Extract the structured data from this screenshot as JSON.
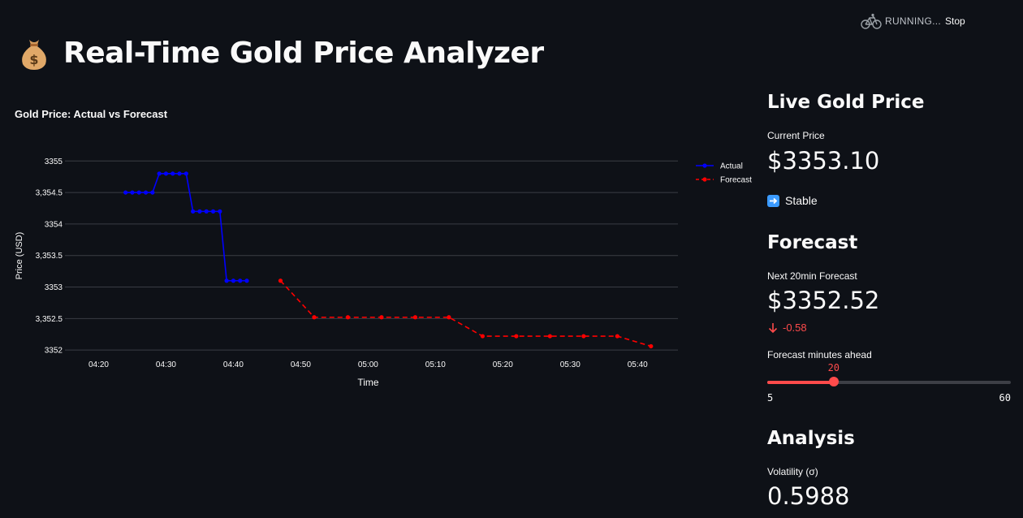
{
  "status_bar": {
    "running_label": "RUNNING...",
    "stop_label": "Stop",
    "icon": "bicycle-icon"
  },
  "page": {
    "title": "Real-Time Gold Price Analyzer",
    "title_icon": "moneybag-icon"
  },
  "chart_data": {
    "type": "line",
    "title": "Gold Price: Actual vs Forecast",
    "xlabel": "Time",
    "ylabel": "Price (USD)",
    "x_ticks": [
      "04:20",
      "04:30",
      "04:40",
      "04:50",
      "05:00",
      "05:10",
      "05:20",
      "05:30",
      "05:40"
    ],
    "y_ticks": [
      "3355",
      "3,354.5",
      "3354",
      "3,353.5",
      "3353",
      "3,352.5",
      "3352"
    ],
    "ylim": [
      3351.95,
      3355.3
    ],
    "grid": "horizontal",
    "legend_position": "right",
    "series": [
      {
        "name": "Actual",
        "color": "#0000ff",
        "linestyle": "solid",
        "x": [
          "04:24",
          "04:25",
          "04:26",
          "04:27",
          "04:28",
          "04:29",
          "04:30",
          "04:31",
          "04:32",
          "04:33",
          "04:34",
          "04:35",
          "04:36",
          "04:37",
          "04:38",
          "04:39",
          "04:40",
          "04:41",
          "04:42"
        ],
        "y": [
          3354.5,
          3354.5,
          3354.5,
          3354.5,
          3354.5,
          3354.8,
          3354.8,
          3354.8,
          3354.8,
          3354.8,
          3354.2,
          3354.2,
          3354.2,
          3354.2,
          3354.2,
          3353.1,
          3353.1,
          3353.1,
          3353.1
        ]
      },
      {
        "name": "Forecast",
        "color": "#ff0000",
        "linestyle": "dashed",
        "x": [
          "04:47",
          "04:52",
          "04:57",
          "05:02",
          "05:07",
          "05:12",
          "05:17",
          "05:22",
          "05:27",
          "05:32",
          "05:37",
          "05:42"
        ],
        "y": [
          3353.1,
          3352.52,
          3352.52,
          3352.52,
          3352.52,
          3352.52,
          3352.22,
          3352.22,
          3352.22,
          3352.22,
          3352.22,
          3352.06
        ]
      }
    ]
  },
  "sidebar": {
    "live_header": "Live Gold Price",
    "current_label": "Current Price",
    "current_value": "$3353.10",
    "status_text": "Stable",
    "status_icon": "right-arrow-icon",
    "forecast_header": "Forecast",
    "forecast_label": "Next 20min Forecast",
    "forecast_value": "$3352.52",
    "forecast_delta": "-0.58",
    "forecast_delta_color": "#ff4b4b",
    "slider": {
      "label": "Forecast minutes ahead",
      "value": 20,
      "min": 5,
      "max": 60
    },
    "analysis_header": "Analysis",
    "volatility_label": "Volatility (σ)",
    "volatility_value": "0.5988"
  }
}
